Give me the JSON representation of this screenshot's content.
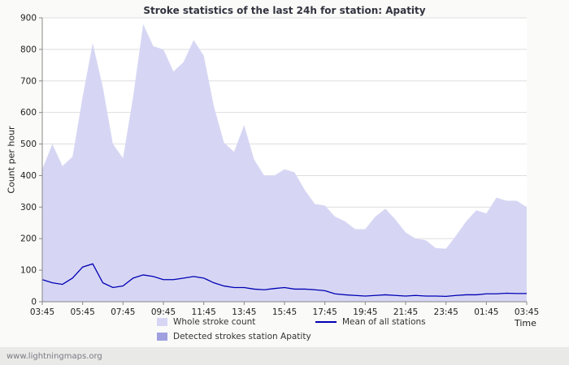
{
  "page": {
    "footer": "www.lightningmaps.org"
  },
  "chart_data": {
    "type": "area",
    "title": "Stroke statistics of the last 24h for station: Apatity",
    "ylabel": "Count per hour",
    "xlabel": "Time",
    "ylim": [
      0,
      900
    ],
    "grid": true,
    "legend_position": "bottom",
    "y_tick_labels": [
      "0",
      "100",
      "200",
      "300",
      "400",
      "500",
      "600",
      "700",
      "800",
      "900"
    ],
    "x_tick_labels": [
      "03:45",
      "05:45",
      "07:45",
      "09:45",
      "11:45",
      "13:45",
      "15:45",
      "17:45",
      "19:45",
      "21:45",
      "23:45",
      "01:45",
      "03:45"
    ],
    "x_step_hours": 0.5,
    "series": [
      {
        "name": "Whole stroke count",
        "type": "area",
        "color": "#d6d6f4",
        "values": [
          420,
          500,
          430,
          460,
          650,
          820,
          680,
          500,
          455,
          650,
          880,
          810,
          800,
          730,
          760,
          830,
          780,
          620,
          505,
          475,
          560,
          450,
          400,
          400,
          420,
          410,
          355,
          310,
          305,
          270,
          255,
          230,
          230,
          270,
          295,
          260,
          220,
          200,
          195,
          170,
          168,
          210,
          255,
          290,
          280,
          330,
          320,
          320,
          300
        ]
      },
      {
        "name": "Detected strokes station Apatity",
        "type": "area",
        "color": "#9fa0e0",
        "values": [
          0,
          0,
          0,
          0,
          0,
          0,
          0,
          0,
          0,
          0,
          0,
          0,
          0,
          0,
          0,
          0,
          0,
          0,
          0,
          0,
          0,
          0,
          0,
          0,
          0,
          0,
          0,
          0,
          0,
          0,
          0,
          0,
          0,
          0,
          0,
          0,
          0,
          0,
          0,
          0,
          0,
          0,
          0,
          0,
          0,
          0,
          0,
          0,
          0
        ]
      },
      {
        "name": "Mean of all stations",
        "type": "line",
        "color": "#0000b4",
        "values": [
          70,
          60,
          55,
          75,
          110,
          120,
          60,
          45,
          50,
          75,
          85,
          80,
          70,
          70,
          75,
          80,
          75,
          60,
          50,
          45,
          45,
          40,
          38,
          42,
          45,
          40,
          40,
          38,
          35,
          25,
          22,
          20,
          18,
          20,
          22,
          20,
          18,
          20,
          18,
          18,
          17,
          20,
          22,
          22,
          25,
          25,
          27,
          26,
          26
        ]
      }
    ]
  }
}
